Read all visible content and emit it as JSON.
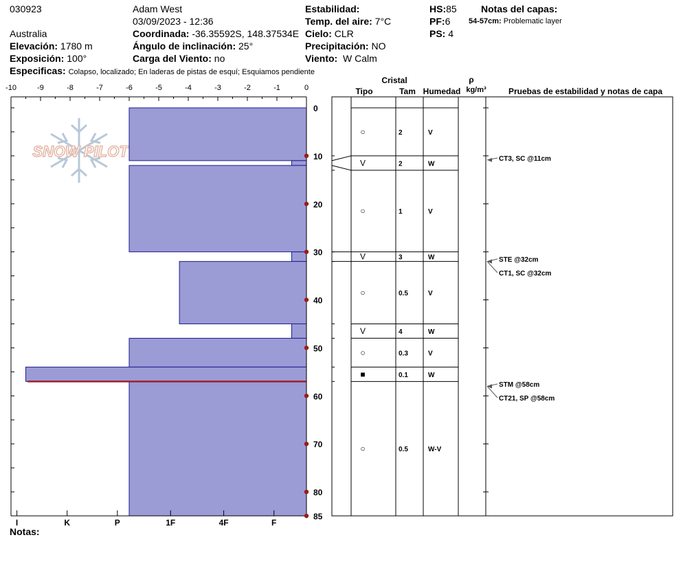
{
  "header": {
    "id": "030923",
    "observer": "Adam West",
    "datetime": "03/09/2023 - 12:36",
    "country": "Australia",
    "elevation_label": "Elevación:",
    "elevation": "1780 m",
    "exposure_label": "Exposición:",
    "exposure": "100°",
    "coord_label": "Coordinada:",
    "coord": "-36.35592S, 148.37534E",
    "slope_label": "Ángulo de inclinación:",
    "slope": "25°",
    "wind_load_label": "Carga del Viento:",
    "wind_load": "no",
    "stability_label": "Estabilidad:",
    "air_temp_label": "Temp. del aire:",
    "air_temp": "7°C",
    "sky_label": "Cielo:",
    "sky": "CLR",
    "precip_label": "Precipitación:",
    "precip": "NO",
    "wind_label": "Viento:",
    "wind": "W Calm",
    "hs_label": "HS:",
    "hs": "85",
    "pf_label": "PF:",
    "pf": "6",
    "ps_label": "PS:",
    "ps": "4",
    "layer_notes_label": "Notas del capas:",
    "layer_note_range": "54-57cm:",
    "layer_note_text": "Problematic layer",
    "specifics_label": "Especificas:",
    "specifics": "Colapso, localizado;  En laderas de pistas de esquí;  Esquiamos pendiente",
    "notes_label": "Notas:"
  },
  "columns": {
    "crystal": "Cristal",
    "type": "Tipo",
    "size": "Tam",
    "moisture": "Humedad",
    "density_symbol": "ρ",
    "density_unit": "kg/m³",
    "tests": "Pruebas de estabilidad y notas de capa"
  },
  "watermark": "SNOW PILOT",
  "colors": {
    "hardness_fill": "#9b9bd6",
    "hardness_stroke": "#1c1c8c",
    "marker": "#9b1c1c",
    "weak_line": "#a0202a"
  },
  "chart_data": {
    "type": "bar",
    "title": "",
    "top_axis": {
      "ticks": [
        "-10",
        "-9",
        "-8",
        "-7",
        "-6",
        "-5",
        "-4",
        "-3",
        "-2",
        "-1",
        "0"
      ],
      "min": -10,
      "max": 0
    },
    "bottom_axis": {
      "labels": [
        "I",
        "K",
        "P",
        "1F",
        "4F",
        "F"
      ],
      "positions": [
        -9.8,
        -8.1,
        -6.4,
        -4.6,
        -2.8,
        -1.1
      ]
    },
    "depth_axis": {
      "ticks": [
        "0",
        "10",
        "20",
        "30",
        "40",
        "50",
        "60",
        "70",
        "80",
        "85"
      ],
      "values": [
        0,
        10,
        20,
        30,
        40,
        50,
        60,
        70,
        80,
        85
      ],
      "max": 85
    },
    "hardness_layers": [
      {
        "top": 0,
        "bottom": 11,
        "hardness": -6
      },
      {
        "top": 11,
        "bottom": 12,
        "hardness": -0.5
      },
      {
        "top": 12,
        "bottom": 30,
        "hardness": -6
      },
      {
        "top": 30,
        "bottom": 32,
        "hardness": -0.5
      },
      {
        "top": 32,
        "bottom": 45,
        "hardness": -4.3
      },
      {
        "top": 45,
        "bottom": 48,
        "hardness": -0.5
      },
      {
        "top": 48,
        "bottom": 54,
        "hardness": -6
      },
      {
        "top": 54,
        "bottom": 57,
        "hardness": -9.5
      },
      {
        "top": 57,
        "bottom": 85,
        "hardness": -6
      }
    ],
    "weak_layer_depth": 57,
    "layers": [
      {
        "top": 0,
        "bottom": 10,
        "type": "○",
        "size": "2",
        "moisture": "V"
      },
      {
        "top": 10,
        "bottom": 13,
        "type": "V",
        "size": "2",
        "moisture": "W"
      },
      {
        "top": 13,
        "bottom": 30,
        "type": "○",
        "size": "1",
        "moisture": "V"
      },
      {
        "top": 30,
        "bottom": 32,
        "type": "V",
        "size": "3",
        "moisture": "W"
      },
      {
        "top": 32,
        "bottom": 45,
        "type": "○",
        "size": "0.5",
        "moisture": "V"
      },
      {
        "top": 45,
        "bottom": 48,
        "type": "V",
        "size": "4",
        "moisture": "W"
      },
      {
        "top": 48,
        "bottom": 54,
        "type": "○",
        "size": "0.3",
        "moisture": "V"
      },
      {
        "top": 54,
        "bottom": 57,
        "type": "■",
        "size": "0.1",
        "moisture": "W"
      },
      {
        "top": 57,
        "bottom": 85,
        "type": "○",
        "size": "0.5",
        "moisture": "W-V"
      }
    ],
    "tests": [
      {
        "depth": 11,
        "label": "CT3, SC @11cm"
      },
      {
        "depth": 32,
        "label": "STE @32cm"
      },
      {
        "depth": 32,
        "label": "CT1, SC @32cm"
      },
      {
        "depth": 58,
        "label": "STM @58cm"
      },
      {
        "depth": 58,
        "label": "CT21, SP @58cm"
      }
    ]
  }
}
